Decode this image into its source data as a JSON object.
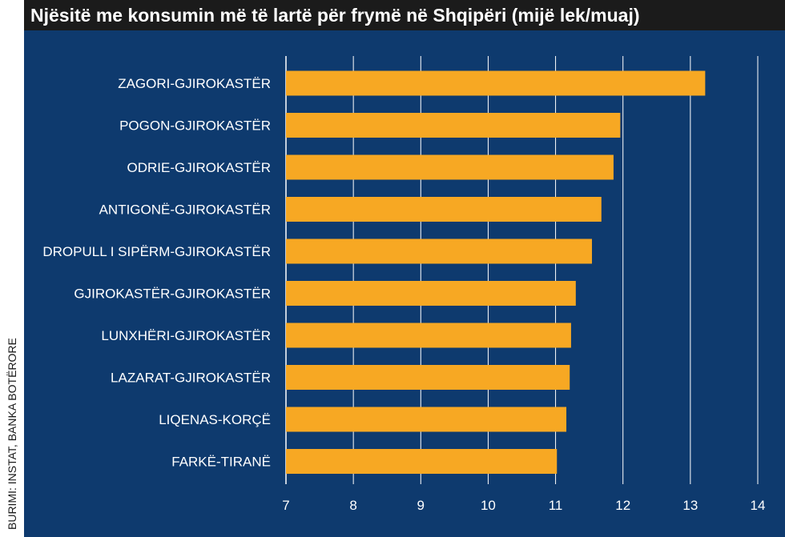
{
  "title": "Njësitë me konsumin më të lartë për frymë në Shqipëri (mijë lek/muaj)",
  "source": "BURIMI: INSTAT, BANKA BOTËRORE",
  "colors": {
    "background": "#0e3a6e",
    "bar": "#f7a823",
    "grid": "#ffffff",
    "title_bg": "#1b1b1b"
  },
  "chart_data": {
    "type": "bar",
    "orientation": "horizontal",
    "categories": [
      "ZAGORI-GJIROKASTËR",
      "POGON-GJIROKASTËR",
      "ODRIE-GJIROKASTËR",
      "ANTIGONË-GJIROKASTËR",
      "DROPULL I SIPËRM-GJIROKASTËR",
      "GJIROKASTËR-GJIROKASTËR",
      "LUNXHËRI-GJIROKASTËR",
      "LAZARAT-GJIROKASTËR",
      "LIQENAS-KORÇË",
      "FARKË-TIRANË"
    ],
    "values": [
      13.22,
      11.96,
      11.86,
      11.68,
      11.54,
      11.3,
      11.23,
      11.21,
      11.16,
      11.02
    ],
    "xlim": [
      7,
      14
    ],
    "xticks": [
      "7",
      "8",
      "9",
      "10",
      "11",
      "12",
      "13",
      "14"
    ],
    "grid": "vertical"
  }
}
